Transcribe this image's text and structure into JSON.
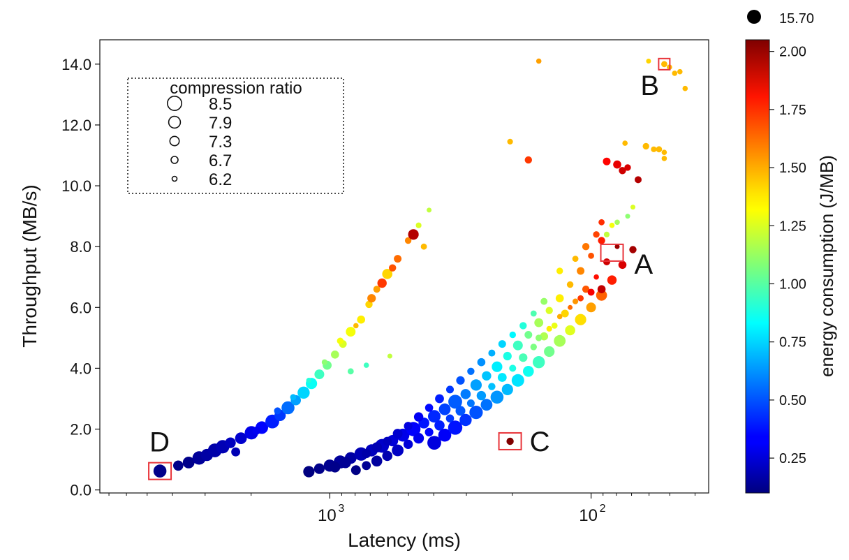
{
  "chart_data": {
    "type": "scatter",
    "title": "",
    "xlabel": "Latency (ms)",
    "ylabel": "Throughput (MB/s)",
    "x_scale": "log",
    "x_reversed": true,
    "xlim_log10": [
      3.88,
      1.55
    ],
    "x_tick_labels": [
      {
        "exp": 3,
        "text": "10",
        "sup": "3"
      },
      {
        "exp": 2,
        "text": "10",
        "sup": "2"
      }
    ],
    "ylim": [
      -0.1,
      14.8
    ],
    "y_ticks": [
      0.0,
      2.0,
      4.0,
      6.0,
      8.0,
      10.0,
      12.0,
      14.0
    ],
    "y_tick_labels": [
      "0.0",
      "2.0",
      "4.0",
      "6.0",
      "8.0",
      "10.0",
      "12.0",
      "14.0"
    ],
    "legend": {
      "title": "compression ratio",
      "placement": "top-left",
      "entries": [
        "8.5",
        "7.9",
        "7.3",
        "6.7",
        "6.2"
      ],
      "entry_values": [
        8.5,
        7.9,
        7.3,
        6.7,
        6.2
      ]
    },
    "colorbar": {
      "label": "energy consumption (J/MB)",
      "range": [
        0.1,
        2.05
      ],
      "ticks": [
        0.25,
        0.5,
        0.75,
        1.0,
        1.25,
        1.5,
        1.75,
        2.0
      ],
      "tick_labels": [
        "0.25",
        "0.50",
        "0.75",
        "1.00",
        "1.25",
        "1.50",
        "1.75",
        "2.00"
      ],
      "colormap": "jet"
    },
    "outlier_marker": {
      "label": "15.70",
      "color": "#000000"
    },
    "annotations": [
      {
        "label": "A",
        "log10_latency": 1.92,
        "throughput": 7.8,
        "box_color": "#e8343a"
      },
      {
        "label": "B",
        "log10_latency": 1.72,
        "throughput": 14.0,
        "box_color": "#e8343a"
      },
      {
        "label": "C",
        "log10_latency": 2.31,
        "throughput": 1.6,
        "box_color": "#e8343a"
      },
      {
        "label": "D",
        "log10_latency": 3.65,
        "throughput": 0.62,
        "box_color": "#e8343a"
      }
    ],
    "series": [
      {
        "cluster": "upper-left branch",
        "points": [
          [
            3.65,
            0.62,
            0.12,
            8.2
          ],
          [
            3.58,
            0.8,
            0.12,
            7.5
          ],
          [
            3.54,
            0.9,
            0.12,
            7.9
          ],
          [
            3.5,
            1.05,
            0.15,
            8.3
          ],
          [
            3.47,
            1.15,
            0.17,
            8.0
          ],
          [
            3.44,
            1.3,
            0.18,
            8.4
          ],
          [
            3.41,
            1.42,
            0.2,
            8.3
          ],
          [
            3.38,
            1.55,
            0.22,
            7.6
          ],
          [
            3.34,
            1.7,
            0.25,
            7.9
          ],
          [
            3.3,
            1.88,
            0.3,
            8.3
          ],
          [
            3.26,
            2.05,
            0.35,
            8.1
          ],
          [
            3.22,
            2.25,
            0.4,
            8.4
          ],
          [
            3.19,
            2.45,
            0.45,
            7.8
          ],
          [
            3.16,
            2.7,
            0.55,
            8.2
          ],
          [
            3.13,
            2.95,
            0.65,
            7.5
          ],
          [
            3.1,
            3.2,
            0.75,
            8.0
          ],
          [
            3.07,
            3.5,
            0.85,
            7.8
          ],
          [
            3.04,
            3.8,
            0.95,
            7.4
          ],
          [
            3.01,
            4.1,
            1.05,
            7.2
          ],
          [
            2.98,
            4.45,
            1.15,
            7.0
          ],
          [
            2.95,
            4.8,
            1.25,
            6.9
          ],
          [
            2.92,
            5.2,
            1.3,
            7.4
          ],
          [
            2.88,
            5.6,
            1.35,
            7.0
          ],
          [
            2.85,
            6.1,
            1.4,
            6.8
          ],
          [
            2.82,
            6.6,
            1.5,
            6.7
          ],
          [
            2.78,
            7.1,
            1.4,
            7.5
          ],
          [
            2.74,
            7.6,
            1.6,
            6.9
          ],
          [
            2.7,
            8.2,
            1.55,
            6.6
          ],
          [
            2.66,
            8.7,
            1.25,
            6.4
          ],
          [
            2.62,
            9.2,
            1.2,
            6.2
          ],
          [
            3.36,
            1.25,
            0.2,
            7.2
          ],
          [
            3.28,
            1.95,
            0.32,
            7.0
          ],
          [
            3.2,
            2.6,
            0.5,
            6.7
          ],
          [
            3.14,
            3.05,
            0.7,
            6.5
          ],
          [
            3.08,
            3.6,
            0.9,
            6.3
          ],
          [
            3.02,
            4.2,
            1.1,
            6.4
          ],
          [
            2.96,
            4.9,
            1.3,
            6.6
          ],
          [
            2.9,
            5.4,
            1.45,
            6.3
          ],
          [
            2.84,
            6.3,
            1.55,
            7.1
          ],
          [
            2.8,
            6.8,
            1.7,
            7.3
          ],
          [
            2.76,
            7.3,
            1.65,
            6.8
          ],
          [
            2.68,
            8.4,
            1.95,
            7.6
          ],
          [
            2.64,
            8.0,
            1.45,
            6.5
          ],
          [
            2.77,
            4.4,
            1.2,
            6.2
          ],
          [
            2.86,
            4.1,
            0.95,
            6.3
          ],
          [
            2.92,
            3.9,
            1.0,
            6.5
          ]
        ]
      },
      {
        "cluster": "main branch",
        "points": [
          [
            3.08,
            0.6,
            0.1,
            7.8
          ],
          [
            3.04,
            0.7,
            0.12,
            7.6
          ],
          [
            3.0,
            0.8,
            0.13,
            8.0
          ],
          [
            2.96,
            0.92,
            0.15,
            8.2
          ],
          [
            2.92,
            1.05,
            0.17,
            7.9
          ],
          [
            2.88,
            1.18,
            0.2,
            8.3
          ],
          [
            2.84,
            1.3,
            0.22,
            8.0
          ],
          [
            2.8,
            1.45,
            0.24,
            8.4
          ],
          [
            2.76,
            1.62,
            0.27,
            7.8
          ],
          [
            2.72,
            1.8,
            0.3,
            8.2
          ],
          [
            2.68,
            2.0,
            0.34,
            8.5
          ],
          [
            2.64,
            2.2,
            0.38,
            7.7
          ],
          [
            2.6,
            2.42,
            0.42,
            8.1
          ],
          [
            2.56,
            2.65,
            0.47,
            7.9
          ],
          [
            2.52,
            2.9,
            0.52,
            8.4
          ],
          [
            2.48,
            3.15,
            0.58,
            7.5
          ],
          [
            2.44,
            3.45,
            0.65,
            7.8
          ],
          [
            2.4,
            3.75,
            0.72,
            7.3
          ],
          [
            2.36,
            4.05,
            0.8,
            7.6
          ],
          [
            2.32,
            4.4,
            0.88,
            7.1
          ],
          [
            2.28,
            4.75,
            0.95,
            7.4
          ],
          [
            2.24,
            5.1,
            1.05,
            6.9
          ],
          [
            2.2,
            5.5,
            1.15,
            7.2
          ],
          [
            2.16,
            5.9,
            1.25,
            6.8
          ],
          [
            2.12,
            6.3,
            1.35,
            7.0
          ],
          [
            2.08,
            6.75,
            1.45,
            6.6
          ],
          [
            2.04,
            7.2,
            1.55,
            6.9
          ],
          [
            2.0,
            7.7,
            1.65,
            6.5
          ],
          [
            1.96,
            8.2,
            1.75,
            6.8
          ],
          [
            1.92,
            8.7,
            1.3,
            6.3
          ],
          [
            2.9,
            0.65,
            0.11,
            7.4
          ],
          [
            2.86,
            0.8,
            0.14,
            7.2
          ],
          [
            2.82,
            0.95,
            0.16,
            7.7
          ],
          [
            2.78,
            1.12,
            0.19,
            7.5
          ],
          [
            2.74,
            1.3,
            0.23,
            7.9
          ],
          [
            2.7,
            1.5,
            0.27,
            7.3
          ],
          [
            2.66,
            1.7,
            0.31,
            7.6
          ],
          [
            2.62,
            1.9,
            0.35,
            7.1
          ],
          [
            2.58,
            2.12,
            0.4,
            7.5
          ],
          [
            2.54,
            2.35,
            0.45,
            7.0
          ],
          [
            2.5,
            2.6,
            0.51,
            7.4
          ],
          [
            2.46,
            2.85,
            0.57,
            6.9
          ],
          [
            2.42,
            3.1,
            0.64,
            7.3
          ],
          [
            2.38,
            3.4,
            0.71,
            6.8
          ],
          [
            2.34,
            3.7,
            0.79,
            7.2
          ],
          [
            2.3,
            4.0,
            0.88,
            6.7
          ],
          [
            2.26,
            4.35,
            0.97,
            7.1
          ],
          [
            2.22,
            4.7,
            1.07,
            6.6
          ],
          [
            2.18,
            5.05,
            1.17,
            7.0
          ],
          [
            2.14,
            5.4,
            1.28,
            6.5
          ],
          [
            2.1,
            5.8,
            1.4,
            6.9
          ],
          [
            2.06,
            6.2,
            1.52,
            6.4
          ],
          [
            2.02,
            6.6,
            1.64,
            6.8
          ],
          [
            1.98,
            7.0,
            1.78,
            6.3
          ],
          [
            1.94,
            7.5,
            1.9,
            6.7
          ],
          [
            1.9,
            8.0,
            2.0,
            6.2
          ],
          [
            2.6,
            1.55,
            0.28,
            8.4
          ],
          [
            2.56,
            1.8,
            0.33,
            8.2
          ],
          [
            2.52,
            2.05,
            0.38,
            8.5
          ],
          [
            2.48,
            2.3,
            0.44,
            8.0
          ],
          [
            2.44,
            2.55,
            0.5,
            8.3
          ],
          [
            2.4,
            2.8,
            0.56,
            7.9
          ],
          [
            2.36,
            3.05,
            0.63,
            8.2
          ],
          [
            2.32,
            3.3,
            0.7,
            7.8
          ],
          [
            2.28,
            3.6,
            0.78,
            8.1
          ],
          [
            2.24,
            3.9,
            0.86,
            7.7
          ],
          [
            2.2,
            4.2,
            0.95,
            8.0
          ],
          [
            2.16,
            4.55,
            1.05,
            7.6
          ],
          [
            2.12,
            4.9,
            1.15,
            7.9
          ],
          [
            2.08,
            5.25,
            1.26,
            7.5
          ],
          [
            2.04,
            5.6,
            1.38,
            7.8
          ],
          [
            2.0,
            6.0,
            1.5,
            7.4
          ],
          [
            1.96,
            6.4,
            1.62,
            7.7
          ],
          [
            1.92,
            6.9,
            1.75,
            7.3
          ],
          [
            1.88,
            7.4,
            1.88,
            7.0
          ],
          [
            1.84,
            7.9,
            1.98,
            6.8
          ],
          [
            2.2,
            5.0,
            1.1,
            6.6
          ],
          [
            2.16,
            5.3,
            1.35,
            6.4
          ],
          [
            2.12,
            5.7,
            1.48,
            6.3
          ],
          [
            2.08,
            6.0,
            1.6,
            6.2
          ],
          [
            2.04,
            6.3,
            1.7,
            6.5
          ],
          [
            2.0,
            6.5,
            1.82,
            6.7
          ],
          [
            1.96,
            6.6,
            1.92,
            7.0
          ],
          [
            1.94,
            8.4,
            1.2,
            6.4
          ],
          [
            1.9,
            8.8,
            1.15,
            6.3
          ],
          [
            1.86,
            9.0,
            1.1,
            6.2
          ],
          [
            1.84,
            9.3,
            1.25,
            6.2
          ],
          [
            2.12,
            7.2,
            1.35,
            6.6
          ],
          [
            2.06,
            7.6,
            1.45,
            6.5
          ],
          [
            2.02,
            8.0,
            1.58,
            6.8
          ],
          [
            1.98,
            8.4,
            1.68,
            6.6
          ],
          [
            1.96,
            8.8,
            1.72,
            6.5
          ],
          [
            2.18,
            6.2,
            1.12,
            6.7
          ],
          [
            2.22,
            5.8,
            0.98,
            6.5
          ],
          [
            2.26,
            5.4,
            0.9,
            6.8
          ],
          [
            2.3,
            5.1,
            0.82,
            6.6
          ],
          [
            2.34,
            4.8,
            0.75,
            6.9
          ],
          [
            2.38,
            4.5,
            0.68,
            6.7
          ],
          [
            2.42,
            4.2,
            0.62,
            7.0
          ],
          [
            2.46,
            3.9,
            0.56,
            6.8
          ],
          [
            2.5,
            3.6,
            0.5,
            7.1
          ],
          [
            2.54,
            3.3,
            0.45,
            6.9
          ],
          [
            2.58,
            3.0,
            0.4,
            7.2
          ],
          [
            2.62,
            2.7,
            0.36,
            7.0
          ],
          [
            2.66,
            2.4,
            0.32,
            7.3
          ],
          [
            2.7,
            2.1,
            0.28,
            7.1
          ],
          [
            2.74,
            1.85,
            0.25,
            7.4
          ],
          [
            2.78,
            1.6,
            0.22,
            7.2
          ],
          [
            2.82,
            1.4,
            0.2,
            7.5
          ],
          [
            2.86,
            1.2,
            0.18,
            7.3
          ],
          [
            2.94,
            0.9,
            0.14,
            7.8
          ],
          [
            2.98,
            0.75,
            0.12,
            7.6
          ],
          [
            2.31,
            1.6,
            2.05,
            6.8
          ]
        ]
      },
      {
        "cluster": "high-throughput tail",
        "points": [
          [
            2.24,
            10.85,
            1.7,
            6.8
          ],
          [
            2.31,
            11.45,
            1.45,
            6.4
          ],
          [
            2.2,
            14.1,
            1.5,
            6.3
          ],
          [
            1.94,
            10.8,
            1.8,
            6.9
          ],
          [
            1.9,
            10.7,
            1.85,
            7.0
          ],
          [
            1.88,
            10.5,
            1.9,
            6.8
          ],
          [
            1.86,
            10.6,
            1.88,
            6.6
          ],
          [
            1.82,
            10.2,
            1.95,
            6.7
          ],
          [
            1.87,
            11.4,
            1.45,
            6.3
          ],
          [
            1.79,
            11.3,
            1.45,
            6.6
          ],
          [
            1.76,
            11.2,
            1.45,
            6.4
          ],
          [
            1.74,
            11.2,
            1.45,
            6.5
          ],
          [
            1.72,
            11.1,
            1.45,
            6.3
          ],
          [
            1.72,
            10.9,
            1.45,
            6.3
          ],
          [
            1.72,
            14.0,
            1.45,
            6.5
          ],
          [
            1.7,
            13.9,
            1.45,
            6.3
          ],
          [
            1.68,
            13.7,
            1.45,
            6.3
          ],
          [
            1.66,
            13.75,
            1.45,
            6.3
          ],
          [
            1.64,
            13.2,
            1.45,
            6.3
          ],
          [
            1.78,
            14.1,
            1.4,
            6.2
          ]
        ]
      }
    ]
  }
}
